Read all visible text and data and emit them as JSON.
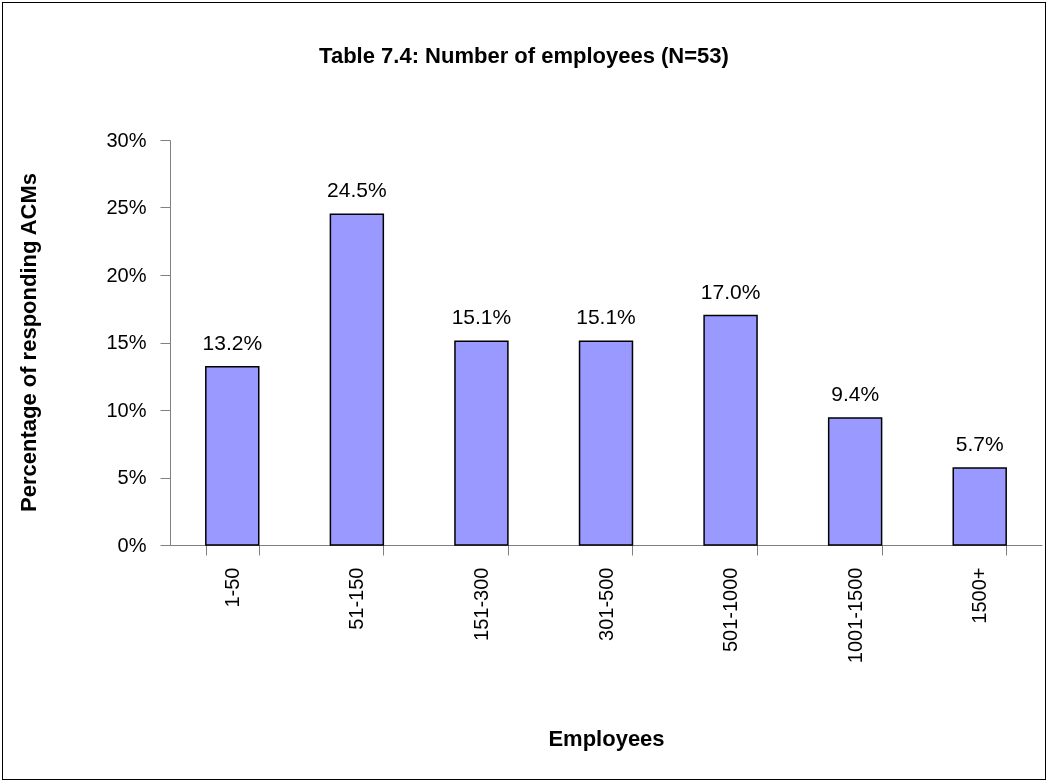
{
  "chart_data": {
    "type": "bar",
    "title": "Table 7.4: Number of employees (N=53)",
    "xlabel": "Employees",
    "ylabel": "Percentage of responding ACMs",
    "categories": [
      "1-50",
      "51-150",
      "151-300",
      "301-500",
      "501-1000",
      "1001-1500",
      "1500+"
    ],
    "values": [
      13.2,
      24.5,
      15.1,
      15.1,
      17.0,
      9.4,
      5.7
    ],
    "value_labels": [
      "13.2%",
      "24.5%",
      "15.1%",
      "15.1%",
      "17.0%",
      "9.4%",
      "5.7%"
    ],
    "color": "#9999ff",
    "ylim": [
      0,
      30
    ],
    "yticks": [
      {
        "value": 0,
        "label": "0%"
      },
      {
        "value": 5,
        "label": "5%"
      },
      {
        "value": 10,
        "label": "10%"
      },
      {
        "value": 15,
        "label": "15%"
      },
      {
        "value": 20,
        "label": "20%"
      },
      {
        "value": 25,
        "label": "25%"
      },
      {
        "value": 30,
        "label": "30%"
      }
    ]
  }
}
